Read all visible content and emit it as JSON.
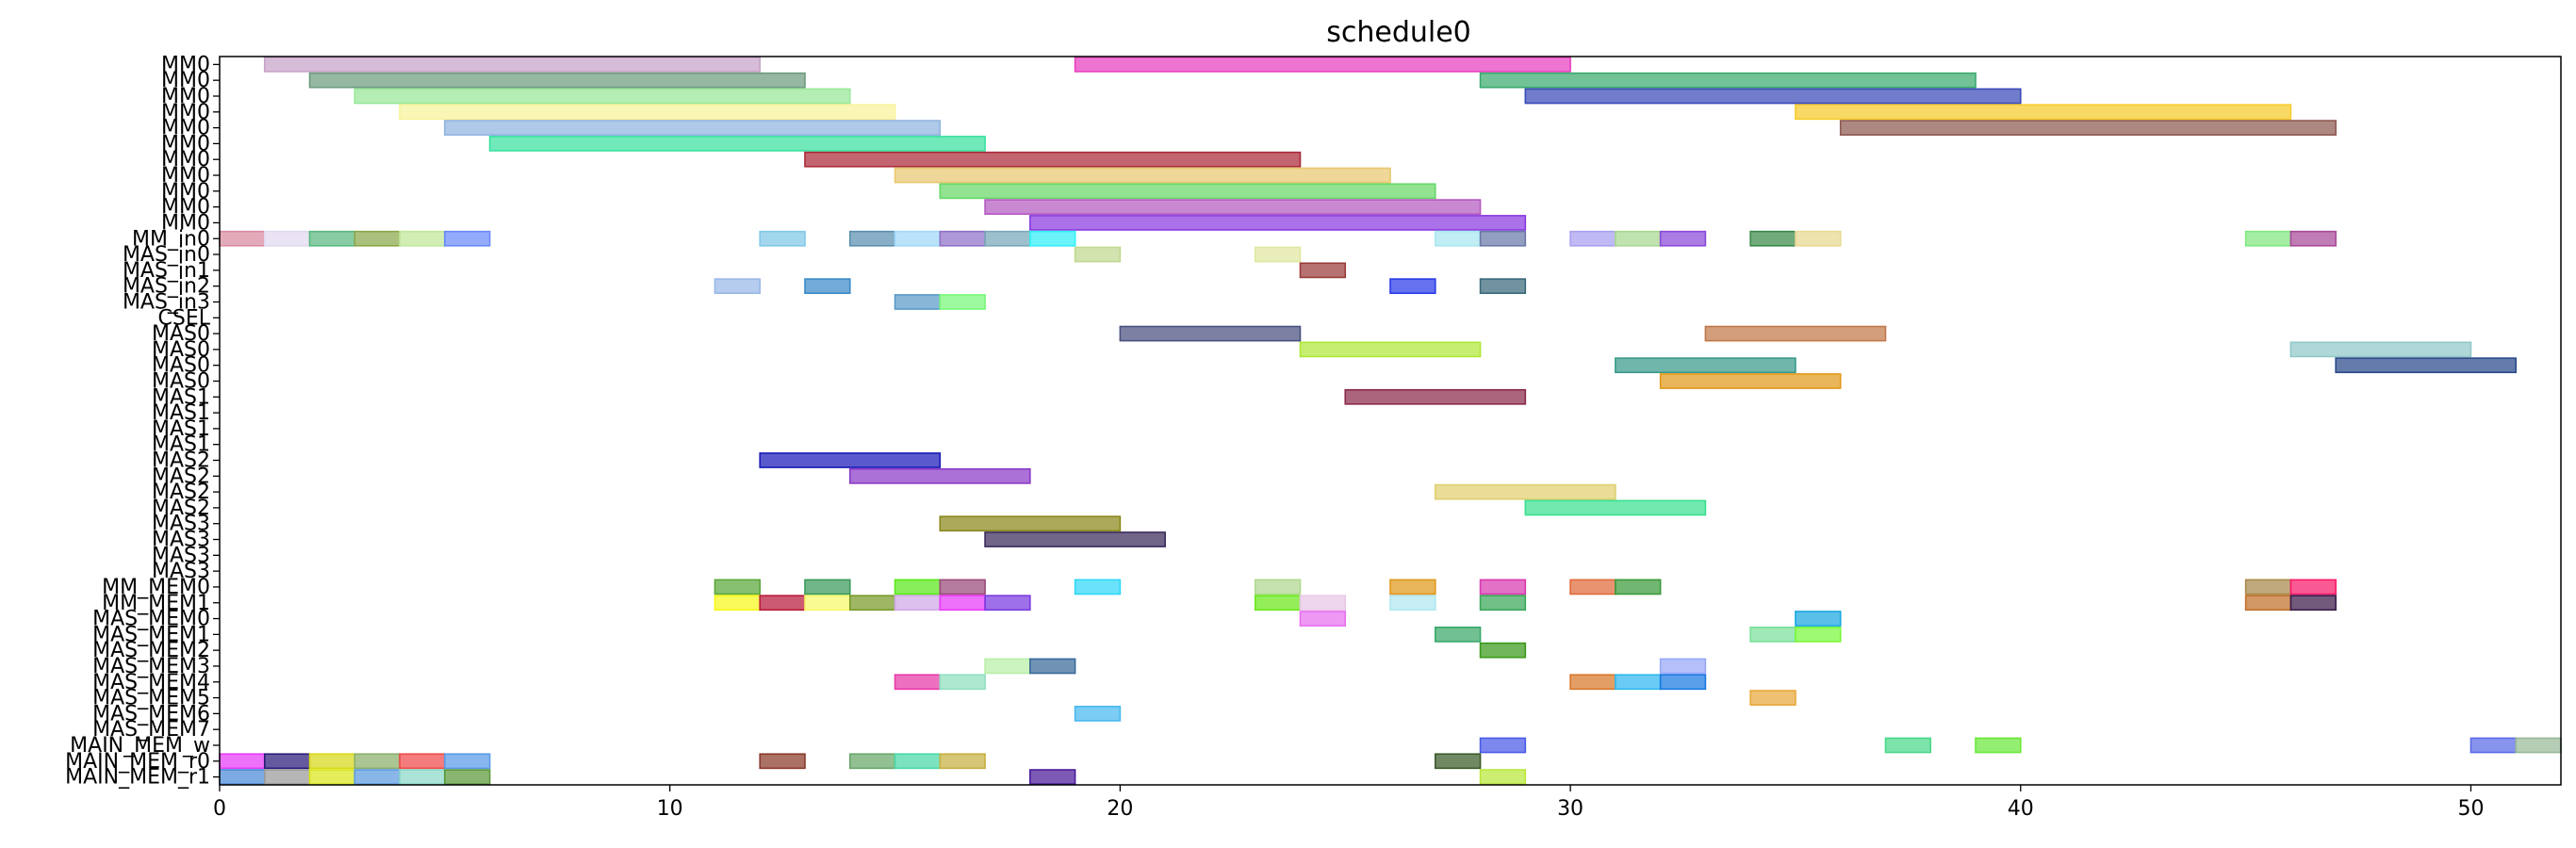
{
  "chart_data": {
    "type": "gantt",
    "title": "schedule0",
    "xlim": [
      0,
      52
    ],
    "xticks": [
      0,
      10,
      20,
      30,
      40,
      50
    ],
    "xlabel": "",
    "ylabel": "",
    "grid": false,
    "rows": [
      "MM0",
      "MM0",
      "MM0",
      "MM0",
      "MM0",
      "MM0",
      "MM0",
      "MM0",
      "MM0",
      "MM0",
      "MM0",
      "MM_in0",
      "MAS_in0",
      "MAS_in1",
      "MAS_in2",
      "MAS_in3",
      "CSEL",
      "MAS0",
      "MAS0",
      "MAS0",
      "MAS0",
      "MAS1",
      "MAS1",
      "MAS1",
      "MAS1",
      "MAS2",
      "MAS2",
      "MAS2",
      "MAS2",
      "MAS3",
      "MAS3",
      "MAS3",
      "MAS3",
      "MM_MEM0",
      "MM_MEM1",
      "MAS_MEM0",
      "MAS_MEM1",
      "MAS_MEM2",
      "MAS_MEM3",
      "MAS_MEM4",
      "MAS_MEM5",
      "MAS_MEM6",
      "MAS_MEM7",
      "MAIN_MEM_w",
      "MAIN_MEM_r0",
      "MAIN_MEM_r1"
    ],
    "tasks": [
      {
        "row": 0,
        "start": 1,
        "end": 12,
        "color": "#c8a2c8"
      },
      {
        "row": 0,
        "start": 19,
        "end": 30,
        "color": "#e83fbf"
      },
      {
        "row": 1,
        "start": 2,
        "end": 13,
        "color": "#6e9b7e"
      },
      {
        "row": 1,
        "start": 28,
        "end": 39,
        "color": "#3aaa6e"
      },
      {
        "row": 2,
        "start": 3,
        "end": 14,
        "color": "#98e898"
      },
      {
        "row": 2,
        "start": 29,
        "end": 40,
        "color": "#3a4ab8"
      },
      {
        "row": 3,
        "start": 4,
        "end": 15,
        "color": "#f8f39a"
      },
      {
        "row": 3,
        "start": 35,
        "end": 46,
        "color": "#f7cb2a"
      },
      {
        "row": 4,
        "start": 5,
        "end": 16,
        "color": "#90b4e0"
      },
      {
        "row": 4,
        "start": 36,
        "end": 47,
        "color": "#8e5a52"
      },
      {
        "row": 5,
        "start": 6,
        "end": 17,
        "color": "#3ae0a0"
      },
      {
        "row": 6,
        "start": 13,
        "end": 24,
        "color": "#aa2a3a"
      },
      {
        "row": 7,
        "start": 15,
        "end": 26,
        "color": "#e8c870"
      },
      {
        "row": 8,
        "start": 16,
        "end": 27,
        "color": "#66d866"
      },
      {
        "row": 9,
        "start": 17,
        "end": 28,
        "color": "#b45ac0"
      },
      {
        "row": 10,
        "start": 18,
        "end": 29,
        "color": "#8a3ae0"
      },
      {
        "row": 11,
        "start": 0,
        "end": 1,
        "color": "#d88aa0"
      },
      {
        "row": 11,
        "start": 1,
        "end": 2,
        "color": "#e0d8f0"
      },
      {
        "row": 11,
        "start": 2,
        "end": 3,
        "color": "#5ab880"
      },
      {
        "row": 11,
        "start": 3,
        "end": 4,
        "color": "#8aa84a"
      },
      {
        "row": 11,
        "start": 4,
        "end": 5,
        "color": "#c0e898"
      },
      {
        "row": 11,
        "start": 5,
        "end": 6,
        "color": "#6a8af8"
      },
      {
        "row": 11,
        "start": 12,
        "end": 13,
        "color": "#80c8e8"
      },
      {
        "row": 11,
        "start": 14,
        "end": 15,
        "color": "#5a90b0"
      },
      {
        "row": 11,
        "start": 15,
        "end": 16,
        "color": "#a0d8f8"
      },
      {
        "row": 11,
        "start": 16,
        "end": 17,
        "color": "#9070c8"
      },
      {
        "row": 11,
        "start": 17,
        "end": 18,
        "color": "#78a8b8"
      },
      {
        "row": 11,
        "start": 18,
        "end": 19,
        "color": "#30f0f8"
      },
      {
        "row": 11,
        "start": 27,
        "end": 28,
        "color": "#a8e8f0"
      },
      {
        "row": 11,
        "start": 28,
        "end": 29,
        "color": "#6a78a8"
      },
      {
        "row": 11,
        "start": 30,
        "end": 31,
        "color": "#a8a0f0"
      },
      {
        "row": 11,
        "start": 31,
        "end": 32,
        "color": "#a8d890"
      },
      {
        "row": 11,
        "start": 32,
        "end": 33,
        "color": "#8a4ad8"
      },
      {
        "row": 11,
        "start": 34,
        "end": 35,
        "color": "#3a8a4a"
      },
      {
        "row": 11,
        "start": 35,
        "end": 36,
        "color": "#e8d890"
      },
      {
        "row": 11,
        "start": 45,
        "end": 46,
        "color": "#80e880"
      },
      {
        "row": 11,
        "start": 46,
        "end": 47,
        "color": "#a84a98"
      },
      {
        "row": 12,
        "start": 19,
        "end": 20,
        "color": "#c0d890"
      },
      {
        "row": 12,
        "start": 23,
        "end": 24,
        "color": "#e0e8a0"
      },
      {
        "row": 13,
        "start": 24,
        "end": 25,
        "color": "#9a3a3a"
      },
      {
        "row": 14,
        "start": 11,
        "end": 12,
        "color": "#98b8e8"
      },
      {
        "row": 14,
        "start": 13,
        "end": 14,
        "color": "#3a8ac8"
      },
      {
        "row": 14,
        "start": 26,
        "end": 27,
        "color": "#2a3ae8"
      },
      {
        "row": 14,
        "start": 28,
        "end": 29,
        "color": "#3a6a7a"
      },
      {
        "row": 15,
        "start": 15,
        "end": 16,
        "color": "#5a9ac8"
      },
      {
        "row": 15,
        "start": 16,
        "end": 17,
        "color": "#78f878"
      },
      {
        "row": 17,
        "start": 20,
        "end": 24,
        "color": "#4a5080"
      },
      {
        "row": 17,
        "start": 33,
        "end": 37,
        "color": "#c0784a"
      },
      {
        "row": 18,
        "start": 24,
        "end": 28,
        "color": "#b0e83a"
      },
      {
        "row": 18,
        "start": 46,
        "end": 50,
        "color": "#90c8c8"
      },
      {
        "row": 19,
        "start": 31,
        "end": 35,
        "color": "#3a9a8a"
      },
      {
        "row": 19,
        "start": 47,
        "end": 51,
        "color": "#2a4a8a"
      },
      {
        "row": 20,
        "start": 32,
        "end": 36,
        "color": "#e0981a"
      },
      {
        "row": 21,
        "start": 25,
        "end": 29,
        "color": "#8a2a4a"
      },
      {
        "row": 25,
        "start": 12,
        "end": 16,
        "color": "#1a1ab8"
      },
      {
        "row": 26,
        "start": 14,
        "end": 18,
        "color": "#8a3ac8"
      },
      {
        "row": 27,
        "start": 27,
        "end": 31,
        "color": "#e0d070"
      },
      {
        "row": 28,
        "start": 29,
        "end": 33,
        "color": "#3ae090"
      },
      {
        "row": 29,
        "start": 16,
        "end": 20,
        "color": "#8a881a"
      },
      {
        "row": 30,
        "start": 17,
        "end": 21,
        "color": "#3a2a5a"
      },
      {
        "row": 33,
        "start": 11,
        "end": 12,
        "color": "#5aa83a"
      },
      {
        "row": 33,
        "start": 13,
        "end": 14,
        "color": "#3a9a5a"
      },
      {
        "row": 33,
        "start": 15,
        "end": 16,
        "color": "#5ae81a"
      },
      {
        "row": 33,
        "start": 16,
        "end": 17,
        "color": "#9a4a7a"
      },
      {
        "row": 33,
        "start": 19,
        "end": 20,
        "color": "#30d8f8"
      },
      {
        "row": 33,
        "start": 23,
        "end": 24,
        "color": "#b0d890"
      },
      {
        "row": 33,
        "start": 26,
        "end": 27,
        "color": "#e0981a"
      },
      {
        "row": 33,
        "start": 28,
        "end": 29,
        "color": "#d83ab0"
      },
      {
        "row": 33,
        "start": 30,
        "end": 31,
        "color": "#e06a3a"
      },
      {
        "row": 33,
        "start": 31,
        "end": 32,
        "color": "#3a9a3a"
      },
      {
        "row": 33,
        "start": 45,
        "end": 46,
        "color": "#a8884a"
      },
      {
        "row": 33,
        "start": 46,
        "end": 47,
        "color": "#f81a6a"
      },
      {
        "row": 34,
        "start": 11,
        "end": 12,
        "color": "#f8f81a"
      },
      {
        "row": 34,
        "start": 12,
        "end": 13,
        "color": "#b81a3a"
      },
      {
        "row": 34,
        "start": 13,
        "end": 14,
        "color": "#f8f86a"
      },
      {
        "row": 34,
        "start": 14,
        "end": 15,
        "color": "#7a9a2a"
      },
      {
        "row": 34,
        "start": 15,
        "end": 16,
        "color": "#d0a8e8"
      },
      {
        "row": 34,
        "start": 16,
        "end": 17,
        "color": "#e83af8"
      },
      {
        "row": 34,
        "start": 17,
        "end": 18,
        "color": "#7a3ae0"
      },
      {
        "row": 34,
        "start": 23,
        "end": 24,
        "color": "#6ae81a"
      },
      {
        "row": 34,
        "start": 24,
        "end": 25,
        "color": "#e8c8e8"
      },
      {
        "row": 34,
        "start": 26,
        "end": 27,
        "color": "#b0e8f0"
      },
      {
        "row": 34,
        "start": 28,
        "end": 29,
        "color": "#3aa85a"
      },
      {
        "row": 34,
        "start": 45,
        "end": 46,
        "color": "#c0702a"
      },
      {
        "row": 34,
        "start": 46,
        "end": 47,
        "color": "#3a1a4a"
      },
      {
        "row": 35,
        "start": 24,
        "end": 25,
        "color": "#e870f0"
      },
      {
        "row": 35,
        "start": 35,
        "end": 36,
        "color": "#1aa8e0"
      },
      {
        "row": 36,
        "start": 27,
        "end": 28,
        "color": "#3aa86a"
      },
      {
        "row": 36,
        "start": 34,
        "end": 35,
        "color": "#78e098"
      },
      {
        "row": 36,
        "start": 35,
        "end": 36,
        "color": "#78f83a"
      },
      {
        "row": 37,
        "start": 28,
        "end": 29,
        "color": "#3a9a1a"
      },
      {
        "row": 38,
        "start": 17,
        "end": 18,
        "color": "#b8f0a8"
      },
      {
        "row": 38,
        "start": 18,
        "end": 19,
        "color": "#3a6a9a"
      },
      {
        "row": 38,
        "start": 32,
        "end": 33,
        "color": "#98a8f8"
      },
      {
        "row": 39,
        "start": 15,
        "end": 16,
        "color": "#e83aa8"
      },
      {
        "row": 39,
        "start": 16,
        "end": 17,
        "color": "#90e0c0"
      },
      {
        "row": 39,
        "start": 30,
        "end": 31,
        "color": "#d8782a"
      },
      {
        "row": 39,
        "start": 31,
        "end": 32,
        "color": "#30b8f0"
      },
      {
        "row": 39,
        "start": 32,
        "end": 33,
        "color": "#1a7ae0"
      },
      {
        "row": 40,
        "start": 34,
        "end": 35,
        "color": "#e8a83a"
      },
      {
        "row": 41,
        "start": 19,
        "end": 20,
        "color": "#4ab8f0"
      },
      {
        "row": 43,
        "start": 28,
        "end": 29,
        "color": "#4a5ae8"
      },
      {
        "row": 43,
        "start": 37,
        "end": 38,
        "color": "#4ad88a"
      },
      {
        "row": 43,
        "start": 39,
        "end": 40,
        "color": "#6ae83a"
      },
      {
        "row": 43,
        "start": 50,
        "end": 51,
        "color": "#5a6ae8"
      },
      {
        "row": 43,
        "start": 51,
        "end": 52,
        "color": "#98b898"
      },
      {
        "row": 44,
        "start": 0,
        "end": 1,
        "color": "#e83af8"
      },
      {
        "row": 44,
        "start": 1,
        "end": 2,
        "color": "#2a1a7a"
      },
      {
        "row": 44,
        "start": 2,
        "end": 3,
        "color": "#d8d81a"
      },
      {
        "row": 44,
        "start": 3,
        "end": 4,
        "color": "#8ab06a"
      },
      {
        "row": 44,
        "start": 4,
        "end": 5,
        "color": "#f04a4a"
      },
      {
        "row": 44,
        "start": 5,
        "end": 6,
        "color": "#5a9ae8"
      },
      {
        "row": 44,
        "start": 12,
        "end": 13,
        "color": "#8a3a2a"
      },
      {
        "row": 44,
        "start": 14,
        "end": 15,
        "color": "#6aa86a"
      },
      {
        "row": 44,
        "start": 15,
        "end": 16,
        "color": "#4ad8a8"
      },
      {
        "row": 44,
        "start": 16,
        "end": 17,
        "color": "#c8b040"
      },
      {
        "row": 44,
        "start": 27,
        "end": 28,
        "color": "#3a5a2a"
      },
      {
        "row": 45,
        "start": 0,
        "end": 1,
        "color": "#4a8ad8"
      },
      {
        "row": 45,
        "start": 1,
        "end": 2,
        "color": "#9a9a9a"
      },
      {
        "row": 45,
        "start": 2,
        "end": 3,
        "color": "#d8e81a"
      },
      {
        "row": 45,
        "start": 3,
        "end": 4,
        "color": "#5a9ae0"
      },
      {
        "row": 45,
        "start": 4,
        "end": 5,
        "color": "#8ad8c8"
      },
      {
        "row": 45,
        "start": 5,
        "end": 6,
        "color": "#5a9a3a"
      },
      {
        "row": 45,
        "start": 18,
        "end": 19,
        "color": "#4a1a9a"
      },
      {
        "row": 45,
        "start": 28,
        "end": 29,
        "color": "#b8e83a"
      }
    ]
  }
}
